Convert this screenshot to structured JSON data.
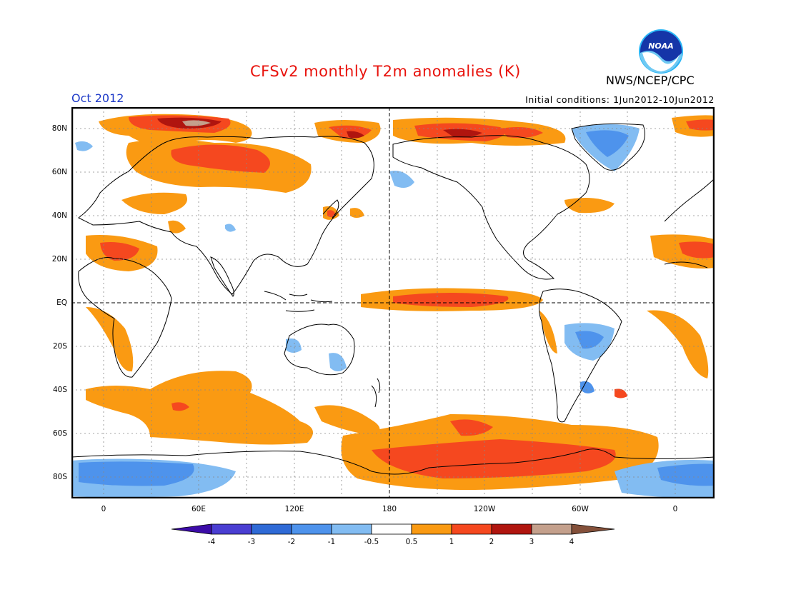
{
  "header": {
    "title": "CFSv2 monthly T2m anomalies (K)",
    "agency": "NWS/NCEP/CPC",
    "logo_text": "NOAA",
    "month": "Oct 2012",
    "initial_conditions": "Initial conditions: 1Jun2012-10Jun2012"
  },
  "map": {
    "projection": "equirectangular",
    "lat_labels": [
      "80N",
      "60N",
      "40N",
      "20N",
      "EQ",
      "20S",
      "40S",
      "60S",
      "80S"
    ],
    "lon_labels": [
      "0",
      "60E",
      "120E",
      "180",
      "120W",
      "60W",
      "0"
    ],
    "grid": "dotted",
    "reference_lines": [
      "Equator",
      "180 meridian"
    ]
  },
  "colorbar": {
    "ticks": [
      "-4",
      "-3",
      "-2",
      "-1",
      "-0.5",
      "0.5",
      "1",
      "2",
      "3",
      "4"
    ],
    "colors": [
      "#3c0ca8",
      "#4a3ed2",
      "#2f6ad6",
      "#4e93ec",
      "#82bcf2",
      "#ffffff",
      "#fa9a12",
      "#f5481f",
      "#b0150f",
      "#c4a08c",
      "#84503a"
    ]
  },
  "colors": {
    "warm_1": "#fa9a12",
    "warm_2": "#f5481f",
    "warm_3": "#b0150f",
    "warm_4": "#c4a08c",
    "cool_1": "#82bcf2",
    "cool_2": "#4e93ec",
    "cool_3": "#2f6ad6",
    "title": "#e8120c",
    "month": "#1e3ac8"
  }
}
